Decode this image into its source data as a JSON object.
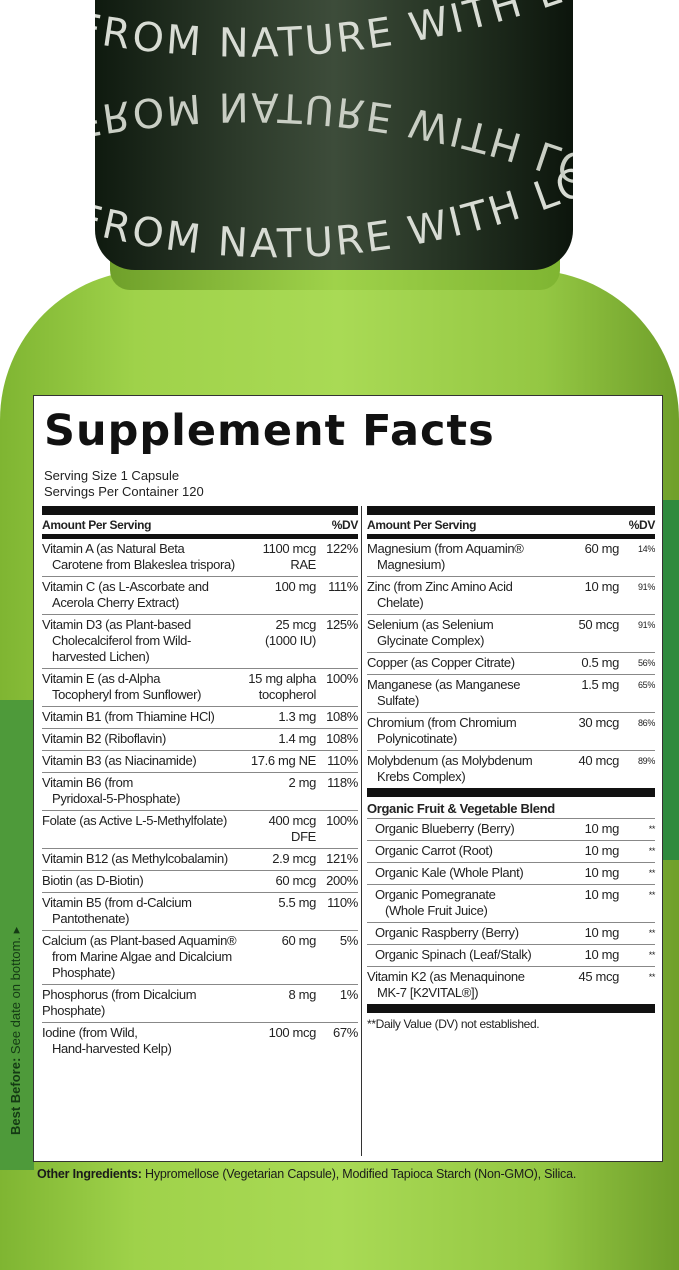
{
  "cap": {
    "text": "FROM NATURE WITH LOVE",
    "color": "#1c2a1c"
  },
  "bottle": {
    "color": "#9fd24a"
  },
  "side_text": {
    "label": "Best Before:",
    "value": "See date on bottom."
  },
  "facts": {
    "title": "Supplement Facts",
    "serving_size": "Serving Size 1 Capsule",
    "servings_per_container": "Servings Per Container 120",
    "header_amount": "Amount Per Serving",
    "header_dv": "%DV",
    "left_rows": [
      {
        "name": "Vitamin A (as Natural Beta",
        "cont": "Carotene from Blakeslea trispora)",
        "amount": "1100 mcg",
        "amount2": "RAE",
        "dv": "122%"
      },
      {
        "name": "Vitamin C (as L-Ascorbate and",
        "cont": "Acerola Cherry Extract)",
        "amount": "100 mg",
        "amount2": "",
        "dv": "111%"
      },
      {
        "name": "Vitamin D3 (as Plant-based",
        "cont": "Cholecalciferol from Wild-harvested Lichen)",
        "amount": "25 mcg",
        "amount2": "(1000 IU)",
        "dv": "125%"
      },
      {
        "name": "Vitamin E (as d-Alpha",
        "cont": "Tocopheryl from Sunflower)",
        "amount": "15 mg alpha",
        "amount2": "tocopherol",
        "dv": "100%"
      },
      {
        "name": "Vitamin B1 (from Thiamine HCl)",
        "cont": "",
        "amount": "1.3 mg",
        "amount2": "",
        "dv": "108%"
      },
      {
        "name": "Vitamin B2 (Riboflavin)",
        "cont": "",
        "amount": "1.4 mg",
        "amount2": "",
        "dv": "108%"
      },
      {
        "name": "Vitamin B3 (as Niacinamide)",
        "cont": "",
        "amount": "17.6 mg NE",
        "amount2": "",
        "dv": "110%"
      },
      {
        "name": "Vitamin B6 (from",
        "cont": "Pyridoxal-5-Phosphate)",
        "amount": "2 mg",
        "amount2": "",
        "dv": "118%"
      },
      {
        "name": "Folate (as Active L-5-Methylfolate)",
        "cont": "",
        "amount": "400 mcg",
        "amount2": "DFE",
        "dv": "100%"
      },
      {
        "name": "Vitamin B12 (as Methylcobalamin)",
        "cont": "",
        "amount": "2.9 mcg",
        "amount2": "",
        "dv": "121%"
      },
      {
        "name": "Biotin (as D-Biotin)",
        "cont": "",
        "amount": "60 mcg",
        "amount2": "",
        "dv": "200%"
      },
      {
        "name": "Vitamin B5 (from d-Calcium",
        "cont": "Pantothenate)",
        "amount": "5.5 mg",
        "amount2": "",
        "dv": "110%"
      },
      {
        "name": "Calcium (as Plant-based Aquamin®",
        "cont": "from Marine Algae and Dicalcium Phosphate)",
        "amount": "60 mg",
        "amount2": "",
        "dv": "5%"
      },
      {
        "name": "Phosphorus (from Dicalcium Phosphate)",
        "cont": "",
        "amount": "8 mg",
        "amount2": "",
        "dv": "1%"
      },
      {
        "name": "Iodine (from Wild,",
        "cont": "Hand-harvested Kelp)",
        "amount": "100 mcg",
        "amount2": "",
        "dv": "67%"
      }
    ],
    "right_rows": [
      {
        "name": "Magnesium (from Aquamin®",
        "cont": "Magnesium)",
        "amount": "60 mg",
        "dv": "14%"
      },
      {
        "name": "Zinc (from Zinc Amino Acid",
        "cont": "Chelate)",
        "amount": "10 mg",
        "dv": "91%"
      },
      {
        "name": "Selenium (as Selenium",
        "cont": "Glycinate Complex)",
        "amount": "50 mcg",
        "dv": "91%"
      },
      {
        "name": "Copper (as Copper Citrate)",
        "cont": "",
        "amount": "0.5 mg",
        "dv": "56%"
      },
      {
        "name": "Manganese (as Manganese",
        "cont": "Sulfate)",
        "amount": "1.5 mg",
        "dv": "65%"
      },
      {
        "name": "Chromium (from Chromium",
        "cont": "Polynicotinate)",
        "amount": "30 mcg",
        "dv": "86%"
      },
      {
        "name": "Molybdenum (as Molybdenum",
        "cont": "Krebs Complex)",
        "amount": "40 mcg",
        "dv": "89%"
      }
    ],
    "blend_title": "Organic Fruit & Vegetable Blend",
    "blend_rows": [
      {
        "name": "Organic Blueberry (Berry)",
        "cont": "",
        "amount": "10 mg",
        "dv": "**"
      },
      {
        "name": "Organic Carrot (Root)",
        "cont": "",
        "amount": "10 mg",
        "dv": "**"
      },
      {
        "name": "Organic Kale (Whole Plant)",
        "cont": "",
        "amount": "10 mg",
        "dv": "**"
      },
      {
        "name": "Organic Pomegranate",
        "cont": "(Whole Fruit Juice)",
        "amount": "10 mg",
        "dv": "**"
      },
      {
        "name": "Organic Raspberry (Berry)",
        "cont": "",
        "amount": "10 mg",
        "dv": "**"
      },
      {
        "name": "Organic Spinach (Leaf/Stalk)",
        "cont": "",
        "amount": "10 mg",
        "dv": "**"
      }
    ],
    "k2": {
      "name": "Vitamin K2 (as Menaquinone",
      "cont": "MK-7 [K2VITAL®])",
      "amount": "45 mcg",
      "dv": "**"
    },
    "footnote": "**Daily Value (DV) not established."
  },
  "other_ingredients": {
    "label": "Other Ingredients:",
    "value": "Hypromellose (Vegetarian Capsule), Modified Tapioca Starch (Non-GMO), Silica."
  }
}
